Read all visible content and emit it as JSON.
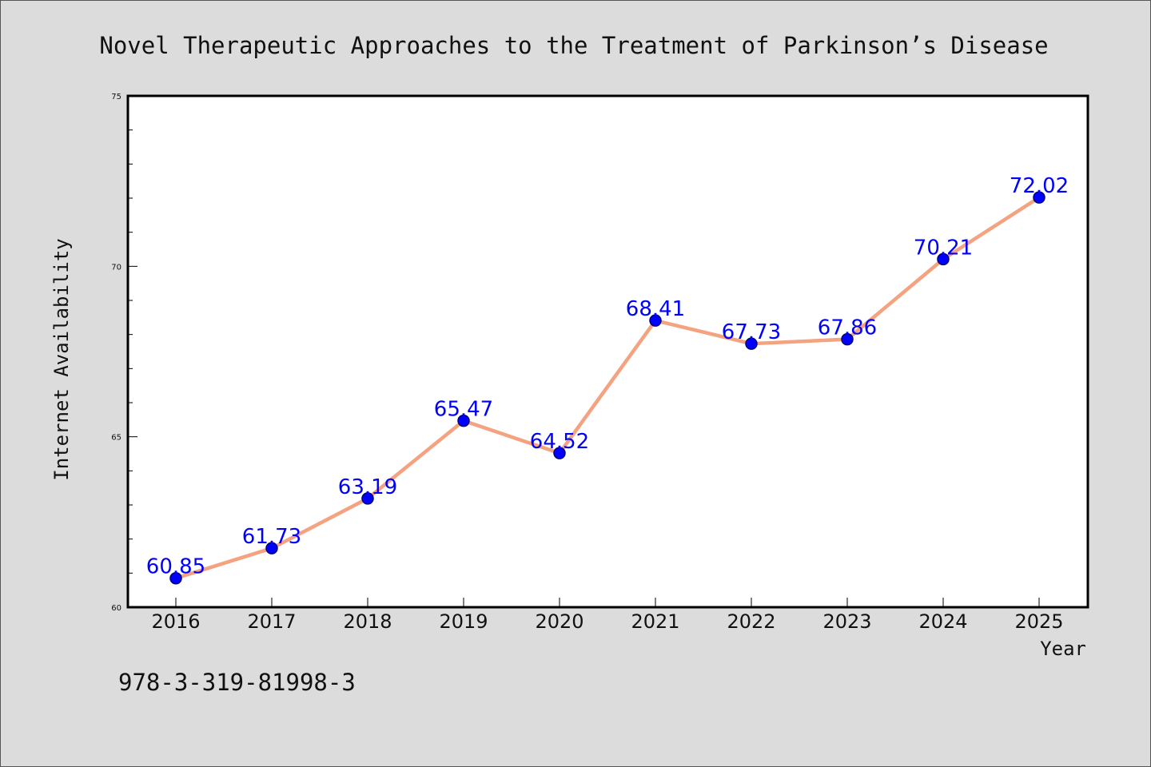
{
  "footer": {
    "code": "978-3-319-81998-3"
  },
  "colors": {
    "line": "#f4a27f",
    "marker": "#0000ff",
    "marker_edge": "#00007a",
    "data_label": "#0000ff"
  },
  "chart_data": {
    "type": "line",
    "title": "Novel Therapeutic Approaches to the Treatment of Parkinson’s Disease",
    "xlabel": "Year",
    "ylabel": "Internet Availability",
    "categories": [
      "2016",
      "2017",
      "2018",
      "2019",
      "2020",
      "2021",
      "2022",
      "2023",
      "2024",
      "2025"
    ],
    "series": [
      {
        "values": [
          60.85,
          61.73,
          63.19,
          65.47,
          64.52,
          68.41,
          67.73,
          67.86,
          70.21,
          72.02
        ],
        "labels": [
          "60.85",
          "61.73",
          "63.19",
          "65.47",
          "64.52",
          "68.41",
          "67.73",
          "67.86",
          "70.21",
          "72.02"
        ]
      }
    ],
    "ylim": [
      60,
      75
    ],
    "yticks": [
      "60",
      "65",
      "70",
      "75"
    ],
    "y_minor_step": 1,
    "grid": false,
    "legend": "none"
  }
}
